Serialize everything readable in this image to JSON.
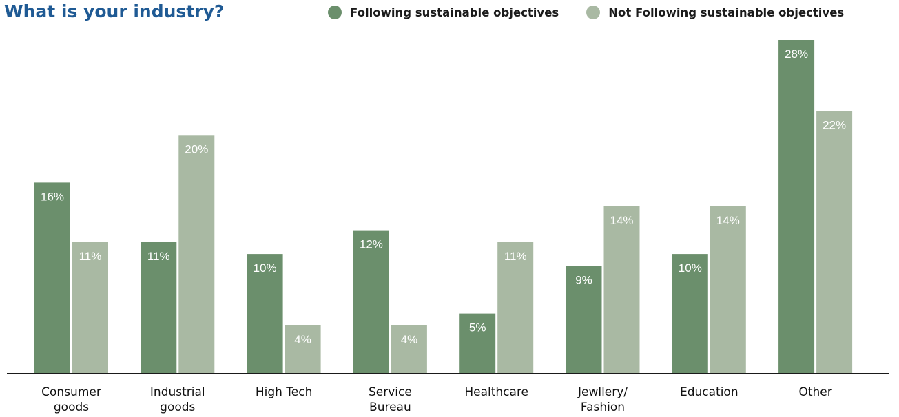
{
  "chart_data": {
    "type": "bar",
    "title": "What is your industry?",
    "categories": [
      [
        "Consumer",
        "goods"
      ],
      [
        "Industrial",
        "goods"
      ],
      [
        "High Tech"
      ],
      [
        "Service",
        "Bureau"
      ],
      [
        "Healthcare"
      ],
      [
        "Jewllery/",
        "Fashion"
      ],
      [
        "Education"
      ],
      [
        "Other"
      ]
    ],
    "series": [
      {
        "name": "Following sustainable objectives",
        "color": "#6b8f6c",
        "values": [
          16,
          11,
          10,
          12,
          5,
          9,
          10,
          28
        ],
        "labels": [
          "16%",
          "11%",
          "10%",
          "12%",
          "5%",
          "9%",
          "10%",
          "28%"
        ]
      },
      {
        "name": "Not Following sustainable objectives",
        "color": "#a9b9a3",
        "values": [
          11,
          20,
          4,
          4,
          11,
          14,
          14,
          22
        ],
        "labels": [
          "11%",
          "20%",
          "4%",
          "4%",
          "11%",
          "14%",
          "14%",
          "22%"
        ]
      }
    ],
    "ylim": [
      0,
      28
    ],
    "legend": "top-right",
    "grid": false
  }
}
